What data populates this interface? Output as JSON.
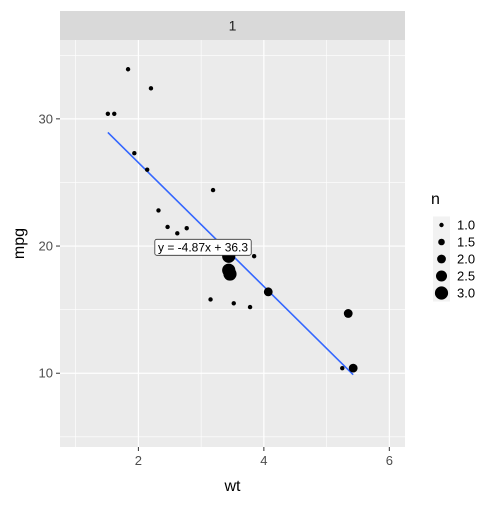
{
  "chart_data": {
    "type": "scatter",
    "facet_label": "1",
    "xlabel": "wt",
    "ylabel": "mpg",
    "xlim": [
      0.75,
      6.25
    ],
    "ylim": [
      4.2,
      36.2
    ],
    "x_ticks": [
      2,
      4,
      6
    ],
    "y_ticks": [
      10,
      20,
      30
    ],
    "grid": true,
    "legend": {
      "title": "n",
      "position": "right",
      "entries": [
        {
          "label": "1.0",
          "value": 1.0
        },
        {
          "label": "1.5",
          "value": 1.5
        },
        {
          "label": "2.0",
          "value": 2.0
        },
        {
          "label": "2.5",
          "value": 2.5
        },
        {
          "label": "3.0",
          "value": 3.0
        }
      ]
    },
    "points": [
      {
        "x": 1.513,
        "y": 30.4,
        "n": 1
      },
      {
        "x": 1.615,
        "y": 30.4,
        "n": 1
      },
      {
        "x": 1.835,
        "y": 33.9,
        "n": 1
      },
      {
        "x": 1.935,
        "y": 27.3,
        "n": 1
      },
      {
        "x": 2.14,
        "y": 26.0,
        "n": 1
      },
      {
        "x": 2.2,
        "y": 32.4,
        "n": 1
      },
      {
        "x": 2.32,
        "y": 22.8,
        "n": 1
      },
      {
        "x": 2.465,
        "y": 21.5,
        "n": 1
      },
      {
        "x": 2.62,
        "y": 21.0,
        "n": 1
      },
      {
        "x": 2.77,
        "y": 21.4,
        "n": 1
      },
      {
        "x": 3.15,
        "y": 15.8,
        "n": 1
      },
      {
        "x": 3.19,
        "y": 24.4,
        "n": 1
      },
      {
        "x": 3.44,
        "y": 19.2,
        "n": 3
      },
      {
        "x": 3.44,
        "y": 18.1,
        "n": 3
      },
      {
        "x": 3.46,
        "y": 17.8,
        "n": 3
      },
      {
        "x": 3.52,
        "y": 15.5,
        "n": 1
      },
      {
        "x": 3.78,
        "y": 15.2,
        "n": 1
      },
      {
        "x": 3.845,
        "y": 19.2,
        "n": 1
      },
      {
        "x": 4.07,
        "y": 16.4,
        "n": 2
      },
      {
        "x": 5.25,
        "y": 10.4,
        "n": 1
      },
      {
        "x": 5.345,
        "y": 14.7,
        "n": 2
      },
      {
        "x": 5.424,
        "y": 10.4,
        "n": 2
      }
    ],
    "fit_line": {
      "color": "#3366FF",
      "x_range": [
        1.513,
        5.424
      ],
      "slope": -4.87,
      "intercept": 36.3
    },
    "annotation": {
      "text": "y = -4.87x + 36.3",
      "x": 3.03,
      "y": 19.9
    },
    "colors": {
      "panel_bg": "#EBEBEB",
      "strip_bg": "#D9D9D9",
      "grid_major": "#FFFFFF",
      "point": "#000000",
      "axis_text": "#4D4D4D"
    }
  }
}
